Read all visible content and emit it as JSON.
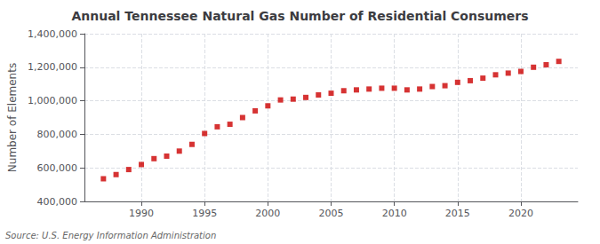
{
  "chart_data": {
    "type": "scatter",
    "title": "Annual Tennessee Natural Gas Number of Residential Consumers",
    "ylabel": "Number of Elements",
    "annotation": "Source: U.S. Energy Information Administration",
    "x": [
      1987,
      1988,
      1989,
      1990,
      1991,
      1992,
      1993,
      1994,
      1995,
      1996,
      1997,
      1998,
      1999,
      2000,
      2001,
      2002,
      2003,
      2004,
      2005,
      2006,
      2007,
      2008,
      2009,
      2010,
      2011,
      2012,
      2013,
      2014,
      2015,
      2016,
      2017,
      2018,
      2019,
      2020,
      2021,
      2022,
      2023
    ],
    "values": [
      535000,
      560000,
      590000,
      620000,
      655000,
      670000,
      700000,
      740000,
      805000,
      845000,
      860000,
      900000,
      940000,
      970000,
      1005000,
      1010000,
      1020000,
      1035000,
      1045000,
      1060000,
      1065000,
      1070000,
      1075000,
      1075000,
      1065000,
      1070000,
      1085000,
      1090000,
      1110000,
      1120000,
      1135000,
      1155000,
      1165000,
      1175000,
      1200000,
      1215000,
      1235000
    ],
    "color": "#cc0000",
    "marker": "square",
    "xlim": [
      1985.5,
      2024.5
    ],
    "xticks": [
      1990,
      1995,
      2000,
      2005,
      2010,
      2015,
      2020
    ],
    "ylim": [
      400000,
      1400000
    ],
    "yticks": [
      {
        "value": 400000,
        "label": "400,000"
      },
      {
        "value": 600000,
        "label": "600,000"
      },
      {
        "value": 800000,
        "label": "800,000"
      },
      {
        "value": 1000000,
        "label": "1,000,000"
      },
      {
        "value": 1200000,
        "label": "1,200,000"
      },
      {
        "value": 1400000,
        "label": "1,400,000"
      }
    ],
    "grid": true
  }
}
